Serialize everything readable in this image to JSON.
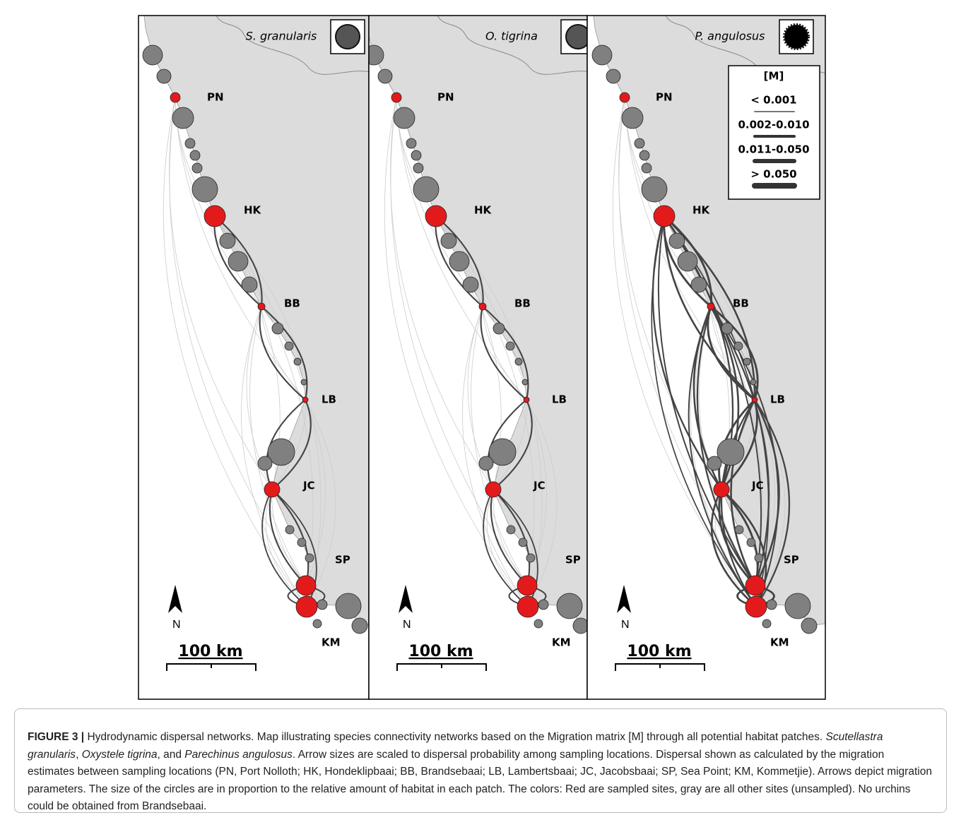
{
  "panels": [
    {
      "species": "S. granularis"
    },
    {
      "species": "O. tigrina"
    },
    {
      "species": "P. angulosus"
    }
  ],
  "sites": [
    "PN",
    "HK",
    "BB",
    "LB",
    "JC",
    "SP",
    "KM"
  ],
  "north": "N",
  "scale_bar": "100 km",
  "legend": {
    "title": "[M]",
    "items": [
      "< 0.001",
      "0.002-0.010",
      "0.011-0.050",
      "> 0.050"
    ]
  },
  "caption": {
    "segments": [
      {
        "text": "FIGURE 3 |",
        "bold": true
      },
      {
        "text": " Hydrodynamic dispersal networks. Map illustrating species connectivity networks based on the Migration matrix [M] through all potential habitat patches. "
      },
      {
        "text": "Scutellastra granularis",
        "italic": true
      },
      {
        "text": ", "
      },
      {
        "text": "Oxystele tigrina",
        "italic": true
      },
      {
        "text": ", and "
      },
      {
        "text": "Parechinus angulosus",
        "italic": true
      },
      {
        "text": ". Arrow sizes are scaled to dispersal probability among sampling locations. Dispersal shown as calculated by the migration estimates between sampling locations (PN, Port Nolloth; HK, Hondeklipbaai; BB, Brandsebaai; LB, Lambertsbaai; JC, Jacobsbaai; SP, Sea Point; KM, Kommetjie). Arrows depict migration parameters. The size of the circles are in proportion to the relative amount of habitat in each patch. The colors: Red are sampled sites, gray are all other sites (unsampled). No urchins could be obtained from Brandsebaai."
      }
    ]
  }
}
